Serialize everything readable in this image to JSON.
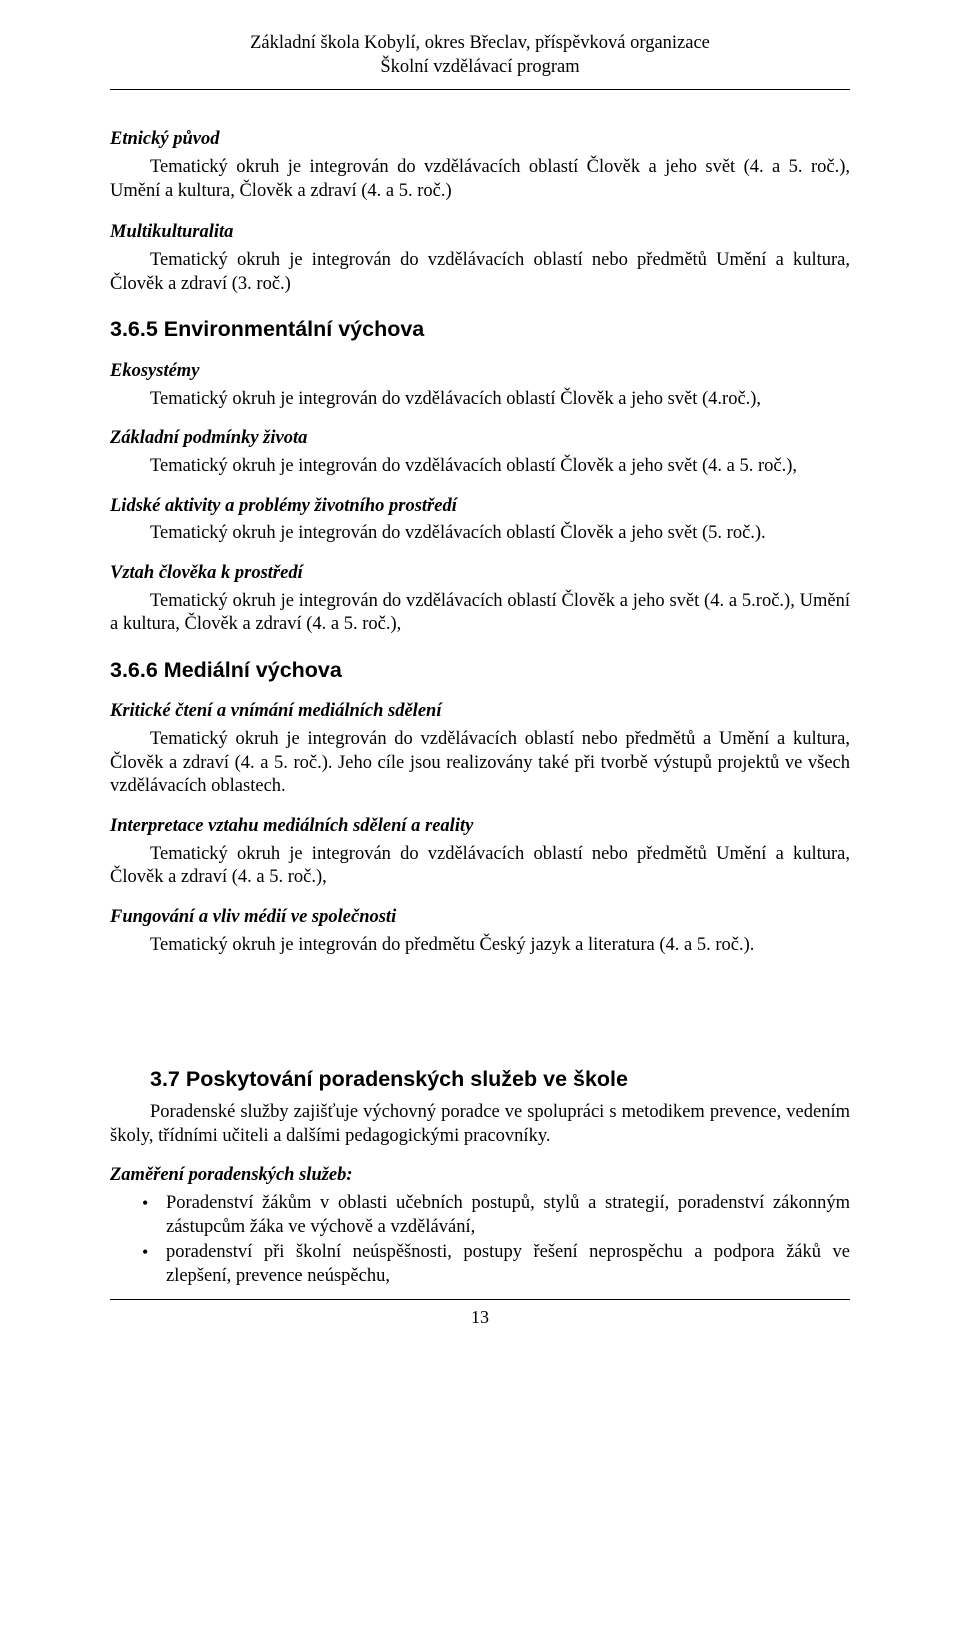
{
  "header": {
    "line1": "Základní škola Kobylí, okres Břeclav, příspěvková organizace",
    "line2": "Školní vzdělávací program"
  },
  "page_number": "13",
  "sections": {
    "etnicky_puvod": {
      "title": "Etnický původ",
      "body": "Tematický okruh je integrován do vzdělávacích oblastí Člověk a jeho svět (4. a 5. roč.), Umění a kultura, Člověk a zdraví (4. a 5. roč.)"
    },
    "multikulturalita": {
      "title": "Multikulturalita",
      "body": "Tematický okruh je integrován do vzdělávacích oblastí nebo předmětů Umění a kultura, Člověk a zdraví (3. roč.)"
    },
    "h365": {
      "num_title": "3.6.5 Environmentální výchova"
    },
    "ekosystemy": {
      "title": "Ekosystémy",
      "body": "Tematický okruh je integrován do vzdělávacích oblastí Člověk a jeho svět (4.roč.),"
    },
    "zakladni_podminky": {
      "title": "Základní podmínky života",
      "body": "Tematický okruh je integrován do vzdělávacích oblastí Člověk a jeho svět (4. a 5. roč.),"
    },
    "lidske_aktivity": {
      "title": "Lidské aktivity a problémy životního prostředí",
      "body": "Tematický okruh je integrován do vzdělávacích oblastí Člověk a jeho svět (5. roč.)."
    },
    "vztah_cloveka": {
      "title": "Vztah člověka k prostředí",
      "body": "Tematický okruh je integrován do vzdělávacích oblastí Člověk a jeho svět (4. a 5.roč.), Umění a kultura, Člověk a zdraví (4. a 5. roč.),"
    },
    "h366": {
      "num_title": "3.6.6 Mediální výchova"
    },
    "kriticke_cteni": {
      "title": "Kritické čtení a vnímání mediálních sdělení",
      "body": "Tematický okruh je integrován do vzdělávacích oblastí nebo předmětů a Umění a kultura, Člověk a zdraví (4. a 5. roč.). Jeho cíle jsou realizovány také při tvorbě výstupů projektů ve všech vzdělávacích oblastech."
    },
    "interpretace": {
      "title": "Interpretace vztahu mediálních sdělení a reality",
      "body": "Tematický okruh je integrován do vzdělávacích oblastí nebo předmětů Umění a kultura, Člověk a zdraví (4. a 5. roč.),"
    },
    "fungovani": {
      "title": "Fungování a vliv médií ve společnosti",
      "body": "Tematický okruh je integrován do předmětu Český jazyk a literatura (4. a 5. roč.)."
    },
    "h37": {
      "num_title": "3.7  Poskytování poradenských služeb ve škole",
      "body": "Poradenské služby zajišťuje výchovný poradce ve spolupráci s metodikem prevence, vedením školy, třídními učiteli a dalšími pedagogickými pracovníky."
    },
    "zamereni": {
      "title": "Zaměření poradenských služeb:",
      "bullets": [
        "Poradenství žákům v oblasti učebních postupů, stylů a strategií, poradenství zákonným zástupcům žáka ve výchově a vzdělávání,",
        "poradenství při školní neúspěšnosti, postupy řešení neprospěchu a podpora žáků ve zlepšení, prevence neúspěchu,"
      ]
    }
  }
}
